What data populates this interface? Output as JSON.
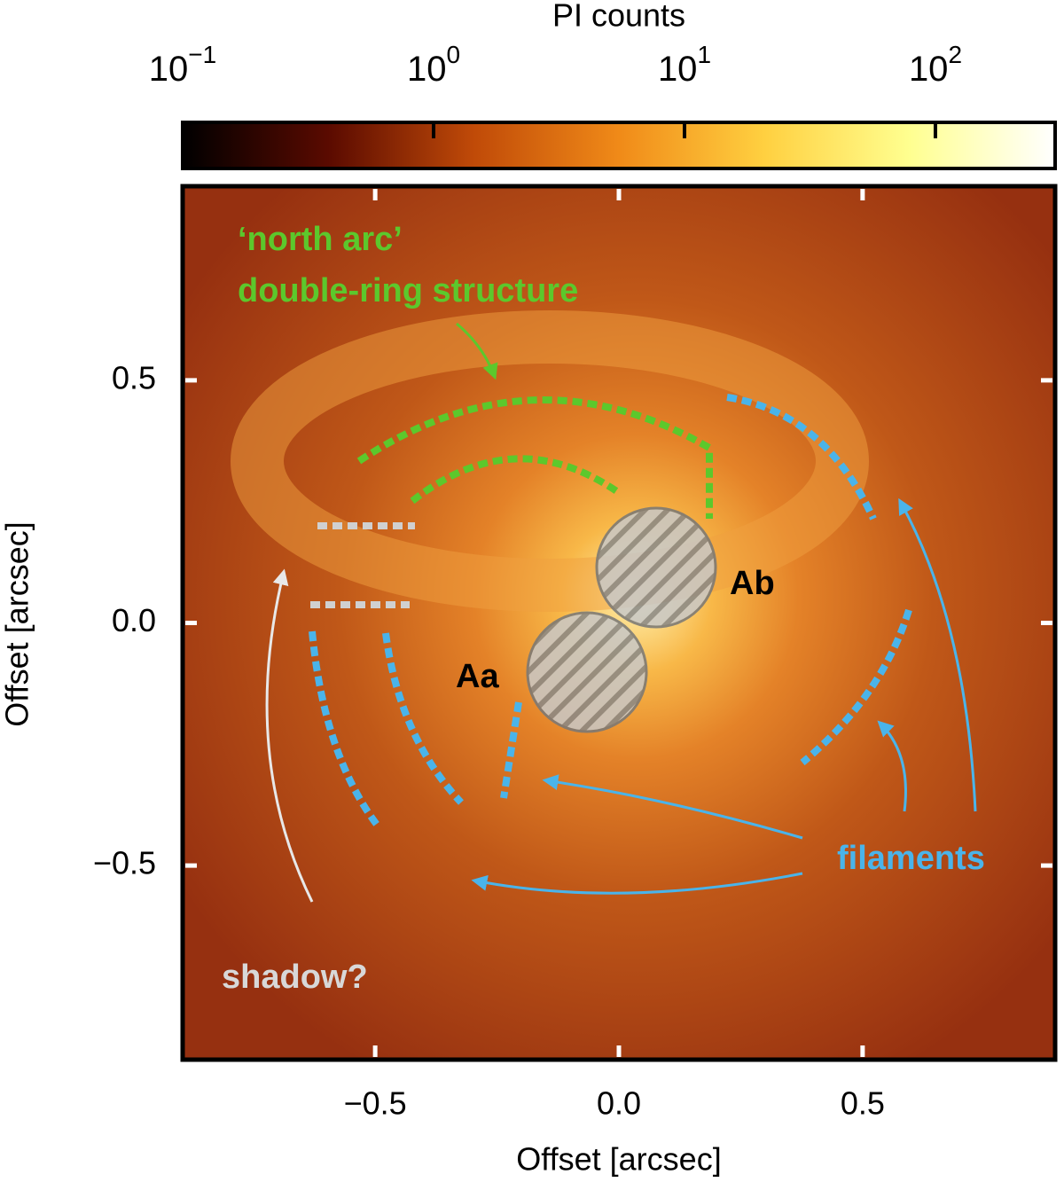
{
  "chart_data": {
    "type": "image",
    "xlabel": "Offset [arcsec]",
    "ylabel": "Offset [arcsec]",
    "xlim": [
      -0.895,
      0.895
    ],
    "ylim": [
      -0.9,
      0.9
    ],
    "xticks": [
      {
        "value": -0.5,
        "label": "−0.5"
      },
      {
        "value": 0,
        "label": "0.0"
      },
      {
        "value": 0.5,
        "label": "0.5"
      }
    ],
    "yticks": [
      {
        "value": -0.5,
        "label": "−0.5"
      },
      {
        "value": 0,
        "label": "0.0"
      },
      {
        "value": 0.5,
        "label": "0.5"
      }
    ],
    "colorbar": {
      "label": "PI counts",
      "clim": [
        0.1,
        300
      ],
      "log": true,
      "colors": [
        "#000000",
        "#5a0a00",
        "#c04a08",
        "#f08a18",
        "#ffd040",
        "#ffff90",
        "#ffffff"
      ],
      "ticks": [
        {
          "value": 0.1,
          "label": "10",
          "exponent": "−1"
        },
        {
          "value": 1,
          "label": "10",
          "exponent": "0"
        },
        {
          "value": 10,
          "label": "10",
          "exponent": "1"
        },
        {
          "value": 100,
          "label": "10",
          "exponent": "2"
        }
      ]
    },
    "annotations": [
      {
        "text": "‘north arc’",
        "color": "#5cc82c"
      },
      {
        "text": "double-ring structure",
        "color": "#5cc82c"
      },
      {
        "text": "Ab",
        "color": "#000000"
      },
      {
        "text": "Aa",
        "color": "#000000"
      },
      {
        "text": "filaments",
        "color": "#4ab4ea"
      },
      {
        "text": "shadow?",
        "color": "#d8d8d8"
      }
    ]
  }
}
